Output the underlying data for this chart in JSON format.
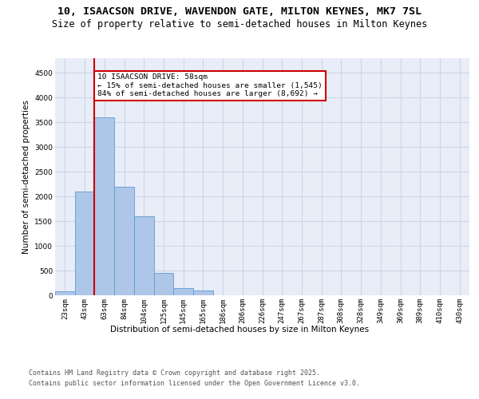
{
  "title_line1": "10, ISAACSON DRIVE, WAVENDON GATE, MILTON KEYNES, MK7 7SL",
  "title_line2": "Size of property relative to semi-detached houses in Milton Keynes",
  "xlabel": "Distribution of semi-detached houses by size in Milton Keynes",
  "ylabel": "Number of semi-detached properties",
  "categories": [
    "23sqm",
    "43sqm",
    "63sqm",
    "84sqm",
    "104sqm",
    "125sqm",
    "145sqm",
    "165sqm",
    "186sqm",
    "206sqm",
    "226sqm",
    "247sqm",
    "267sqm",
    "287sqm",
    "308sqm",
    "328sqm",
    "349sqm",
    "369sqm",
    "389sqm",
    "410sqm",
    "430sqm"
  ],
  "values": [
    75,
    2100,
    3600,
    2200,
    1600,
    450,
    140,
    90,
    0,
    0,
    0,
    0,
    0,
    0,
    0,
    0,
    0,
    0,
    0,
    0,
    0
  ],
  "bar_color": "#aec6e8",
  "bar_edge_color": "#5b9bd5",
  "vline_x_idx": 1.5,
  "vline_color": "#cc0000",
  "annotation_title": "10 ISAACSON DRIVE: 58sqm",
  "annotation_line2": "← 15% of semi-detached houses are smaller (1,545)",
  "annotation_line3": "84% of semi-detached houses are larger (8,692) →",
  "annotation_box_edgecolor": "#cc0000",
  "annotation_bg": "#ffffff",
  "ylim": [
    0,
    4800
  ],
  "yticks": [
    0,
    500,
    1000,
    1500,
    2000,
    2500,
    3000,
    3500,
    4000,
    4500
  ],
  "grid_color": "#cdd5e6",
  "background_color": "#e8edf7",
  "footer_line1": "Contains HM Land Registry data © Crown copyright and database right 2025.",
  "footer_line2": "Contains public sector information licensed under the Open Government Licence v3.0.",
  "title_fontsize": 9.5,
  "subtitle_fontsize": 8.5,
  "axis_label_fontsize": 7.5,
  "tick_fontsize": 6.5,
  "annotation_fontsize": 6.8,
  "footer_fontsize": 6.0
}
